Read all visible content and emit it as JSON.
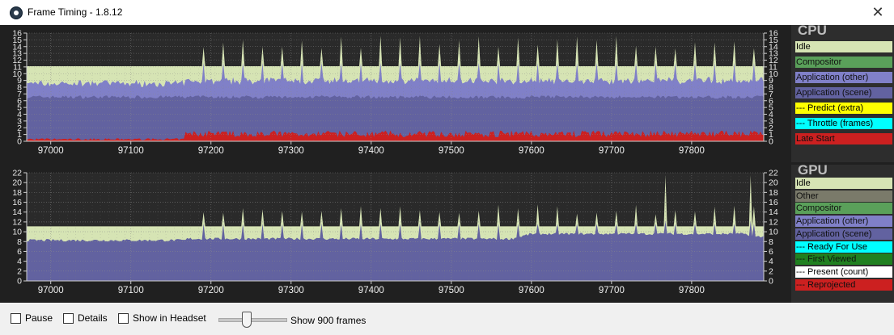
{
  "window": {
    "title": "Frame Timing - 1.8.12",
    "close_glyph": "✕",
    "icon": "steamvr-logo-icon"
  },
  "x_ticks": [
    "97000",
    "97100",
    "97200",
    "97300",
    "97400",
    "97500",
    "97600",
    "97700",
    "97800"
  ],
  "cpu": {
    "title": "CPU",
    "ylim": [
      0,
      16
    ],
    "y_ticks": [
      "0",
      "1",
      "2",
      "3",
      "4",
      "5",
      "6",
      "7",
      "8",
      "9",
      "10",
      "11",
      "12",
      "13",
      "14",
      "15",
      "16"
    ],
    "legend": [
      {
        "label": "Idle",
        "color": "#d6e4b4"
      },
      {
        "label": "Compositor",
        "color": "#5aa05a"
      },
      {
        "label": "Application (other)",
        "color": "#8080c8"
      },
      {
        "label": "Application (scene)",
        "color": "#6262a0"
      },
      {
        "label": "--- Predict (extra)",
        "color": "#ffff00"
      },
      {
        "label": "--- Throttle (frames)",
        "color": "#00ffff"
      },
      {
        "label": "Late Start",
        "color": "#cc2020"
      }
    ],
    "chart_data": {
      "type": "area",
      "x_range": [
        96970,
        97890
      ],
      "ylim": [
        0,
        16
      ],
      "frame_budget": 11.1,
      "series": [
        {
          "name": "Application (scene)",
          "approx_level": 6.5
        },
        {
          "name": "Application (other)",
          "approx_level": 8.5
        },
        {
          "name": "Idle",
          "approx_level": 11.1
        },
        {
          "name": "Late Start",
          "approx_level": 0.8
        }
      ]
    }
  },
  "gpu": {
    "title": "GPU",
    "ylim": [
      0,
      22
    ],
    "y_ticks": [
      "0",
      "2",
      "4",
      "6",
      "8",
      "10",
      "12",
      "14",
      "16",
      "18",
      "20",
      "22"
    ],
    "legend": [
      {
        "label": "Idle",
        "color": "#d6e4b4"
      },
      {
        "label": "Other",
        "color": "#7a7a6a"
      },
      {
        "label": "Compositor",
        "color": "#5aa05a"
      },
      {
        "label": "Application (other)",
        "color": "#8080c8"
      },
      {
        "label": "Application (scene)",
        "color": "#6262a0"
      },
      {
        "label": "--- Ready For Use",
        "color": "#00ffff"
      },
      {
        "label": "--- First Viewed",
        "color": "#208020"
      },
      {
        "label": "--- Present (count)",
        "color": "#ffffff"
      },
      {
        "label": "--- Reprojected",
        "color": "#cc2020"
      }
    ],
    "chart_data": {
      "type": "area",
      "x_range": [
        96970,
        97890
      ],
      "ylim": [
        0,
        22
      ],
      "frame_budget": 11.1,
      "series": [
        {
          "name": "Application (scene)",
          "approx_level": 8.0
        },
        {
          "name": "Idle",
          "approx_level": 11.1
        }
      ]
    }
  },
  "controls": {
    "pause_label": "Pause",
    "details_label": "Details",
    "show_headset_label": "Show in Headset",
    "frames_label": "Show 900 frames",
    "frames_value": 900
  }
}
